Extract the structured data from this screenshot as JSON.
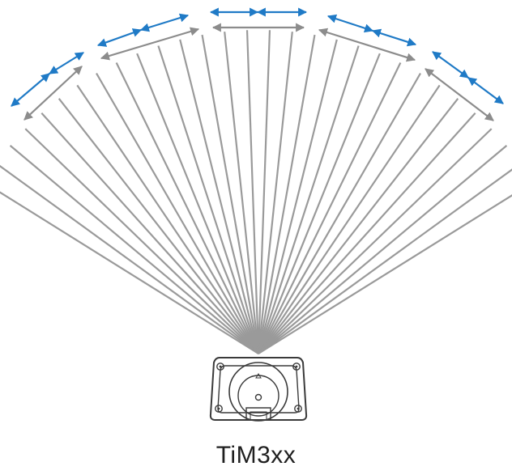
{
  "diagram": {
    "caption": "TiM3xx",
    "beam_count": 30,
    "colors": {
      "beam": "#9a9a9a",
      "arrow_gray": "#8c8c8c",
      "arrow_blue": "#1f7ac6",
      "device_stroke": "#3a3a3a",
      "background": "#ffffff"
    },
    "icons": [
      "device-icon",
      "double-arrow-icon"
    ]
  }
}
